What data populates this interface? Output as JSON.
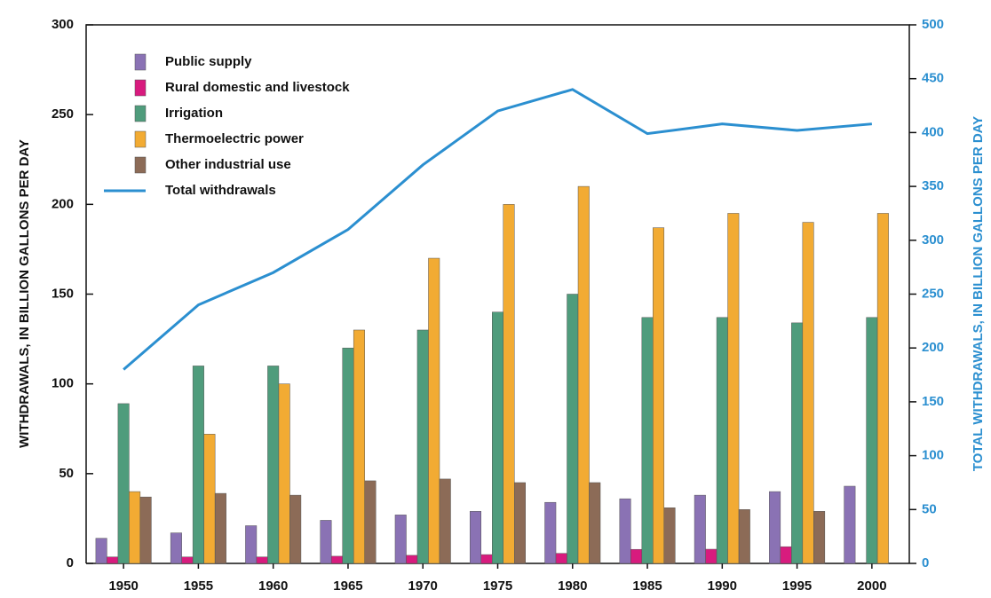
{
  "chart_data": {
    "type": "bar",
    "y_label": "WITHDRAWALS, IN BILLION GALLONS PER DAY",
    "y2_label": "TOTAL WITHDRAWALS, IN BILLION GALLONS PER DAY",
    "categories": [
      "1950",
      "1955",
      "1960",
      "1965",
      "1970",
      "1975",
      "1980",
      "1985",
      "1990",
      "1995",
      "2000"
    ],
    "series": [
      {
        "name": "Public supply",
        "color": "#8a72b4",
        "values": [
          14,
          17,
          21,
          24,
          27,
          29,
          34,
          36,
          38,
          40,
          43
        ]
      },
      {
        "name": "Rural domestic and livestock",
        "color": "#d81b7e",
        "values": [
          3.6,
          3.6,
          3.6,
          4,
          4.5,
          4.9,
          5.6,
          7.8,
          7.9,
          9.3,
          null
        ]
      },
      {
        "name": "Irrigation",
        "color": "#4f9c7c",
        "values": [
          89,
          110,
          110,
          120,
          130,
          140,
          150,
          137,
          137,
          134,
          137
        ]
      },
      {
        "name": "Thermoelectric power",
        "color": "#f2ab33",
        "values": [
          40,
          72,
          100,
          130,
          170,
          200,
          210,
          187,
          195,
          190,
          195
        ]
      },
      {
        "name": "Other industrial use",
        "color": "#8c6b57",
        "values": [
          37,
          39,
          38,
          46,
          47,
          45,
          45,
          31,
          30,
          29,
          null
        ]
      },
      {
        "name": "Total withdrawals",
        "color": "#2b8fd0",
        "type": "line",
        "axis": "y2",
        "values": [
          180,
          240,
          270,
          310,
          370,
          420,
          440,
          399,
          408,
          402,
          408
        ]
      }
    ],
    "ylim": [
      0,
      300
    ],
    "yticks": [
      0,
      50,
      100,
      150,
      200,
      250,
      300
    ],
    "y2lim": [
      0,
      500
    ],
    "y2ticks": [
      0,
      50,
      100,
      150,
      200,
      250,
      300,
      350,
      400,
      450,
      500
    ],
    "legend": "upper-left"
  }
}
